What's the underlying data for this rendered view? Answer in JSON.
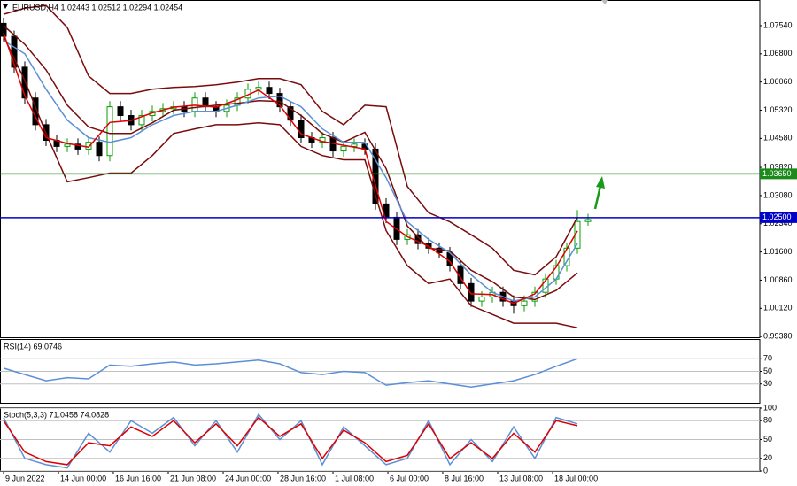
{
  "chart_data": [
    {
      "type": "candlestick",
      "title": "EURUSD,H4 1.02443 1.02512 1.02294 1.02454",
      "x": [
        0,
        1,
        2,
        3,
        4,
        5,
        6,
        7,
        8,
        9,
        10,
        11,
        12,
        13,
        14,
        15,
        16,
        17,
        18,
        19,
        20,
        21,
        22,
        23,
        24,
        25,
        26,
        27,
        28,
        29,
        30,
        31,
        32,
        33,
        34,
        35,
        36,
        37,
        38,
        39,
        40,
        41,
        42,
        43,
        44,
        45,
        46,
        47,
        48,
        49,
        50,
        51,
        52,
        53,
        54,
        55
      ],
      "open": [
        1.076,
        1.0726,
        1.0645,
        1.0564,
        1.0494,
        1.0453,
        1.0437,
        1.0443,
        1.043,
        1.0448,
        1.0413,
        1.0541,
        1.0518,
        1.0494,
        1.0518,
        1.0529,
        1.0536,
        1.0541,
        1.0529,
        1.0564,
        1.0541,
        1.0529,
        1.0545,
        1.0564,
        1.0587,
        1.0592,
        1.0576,
        1.0541,
        1.0506,
        1.046,
        1.0448,
        1.046,
        1.0425,
        1.0437,
        1.0443,
        1.043,
        1.0286,
        1.0251,
        1.0193,
        1.0205,
        1.0182,
        1.017,
        1.0158,
        1.0124,
        1.0077,
        1.0031,
        1.0042,
        1.0054,
        1.0031,
        1.0019,
        1.0031,
        1.0054,
        1.0089,
        1.0124,
        1.017,
        1.024
      ],
      "high": [
        1.0775,
        1.0741,
        1.066,
        1.0579,
        1.0509,
        1.0468,
        1.0458,
        1.0458,
        1.0463,
        1.0463,
        1.0556,
        1.0556,
        1.0533,
        1.0533,
        1.0544,
        1.0551,
        1.0556,
        1.0556,
        1.0579,
        1.0579,
        1.0556,
        1.056,
        1.0579,
        1.0602,
        1.0607,
        1.0607,
        1.0591,
        1.0556,
        1.0521,
        1.0475,
        1.0475,
        1.0475,
        1.0452,
        1.0458,
        1.0458,
        1.0445,
        1.0301,
        1.0266,
        1.022,
        1.022,
        1.0197,
        1.0185,
        1.0173,
        1.0139,
        1.0092,
        1.0057,
        1.0069,
        1.0069,
        1.0046,
        1.0046,
        1.0069,
        1.0104,
        1.0139,
        1.0185,
        1.027,
        1.026
      ],
      "low": [
        1.0711,
        1.063,
        1.0549,
        1.0479,
        1.0438,
        1.0422,
        1.0422,
        1.0415,
        1.0415,
        1.0398,
        1.0398,
        1.0503,
        1.0479,
        1.0479,
        1.0503,
        1.0514,
        1.0521,
        1.0514,
        1.0514,
        1.0526,
        1.0514,
        1.0514,
        1.053,
        1.0549,
        1.0572,
        1.0561,
        1.0526,
        1.0491,
        1.0445,
        1.0433,
        1.0433,
        1.041,
        1.041,
        1.0422,
        1.0415,
        1.0271,
        1.0236,
        1.0178,
        1.0178,
        1.0167,
        1.0155,
        1.0143,
        1.0109,
        1.0062,
        1.0016,
        1.0016,
        1.0027,
        1.0016,
        0.9998,
        1.0004,
        1.0016,
        1.0039,
        1.0074,
        1.0109,
        1.0155,
        1.0229
      ],
      "close": [
        1.0726,
        1.0645,
        1.0564,
        1.0494,
        1.0453,
        1.0437,
        1.0443,
        1.043,
        1.0448,
        1.0413,
        1.0541,
        1.0518,
        1.0494,
        1.0518,
        1.0529,
        1.0536,
        1.0541,
        1.0529,
        1.0564,
        1.0541,
        1.0529,
        1.0545,
        1.0564,
        1.0587,
        1.0592,
        1.0576,
        1.0541,
        1.0506,
        1.046,
        1.0448,
        1.046,
        1.0425,
        1.0437,
        1.0443,
        1.043,
        1.0286,
        1.0251,
        1.0193,
        1.0205,
        1.0182,
        1.017,
        1.0158,
        1.0124,
        1.0077,
        1.0031,
        1.0042,
        1.0054,
        1.0031,
        1.0019,
        1.0031,
        1.0054,
        1.0089,
        1.0124,
        1.017,
        1.024,
        1.0245
      ],
      "up_color": "#00a000",
      "down_color": "#000000",
      "overlays": {
        "x": [
          0,
          2,
          4,
          6,
          8,
          10,
          12,
          14,
          16,
          18,
          20,
          22,
          24,
          26,
          28,
          30,
          32,
          34,
          36,
          38,
          40,
          42,
          44,
          46,
          48,
          50,
          52,
          54
        ],
        "series": [
          {
            "color": "#7a0b0b",
            "values": [
              1.0784,
              1.08,
              1.0807,
              1.0749,
              1.0622,
              1.0576,
              1.0576,
              1.0587,
              1.0592,
              1.0594,
              1.0599,
              1.0606,
              1.0615,
              1.0615,
              1.0599,
              1.0529,
              1.0494,
              1.0545,
              1.0541,
              1.0332,
              1.0263,
              1.0239,
              1.0205,
              1.017,
              1.0112,
              1.01,
              1.0147,
              1.0251
            ]
          },
          {
            "color": "#7a0b0b",
            "values": [
              1.0726,
              1.061,
              1.0471,
              1.0344,
              1.0355,
              1.0367,
              1.0367,
              1.0413,
              1.0471,
              1.0483,
              1.0494,
              1.0494,
              1.0499,
              1.0494,
              1.0437,
              1.0413,
              1.0402,
              1.0402,
              1.0216,
              1.0124,
              1.0077,
              1.0089,
              1.0019,
              0.9996,
              0.9973,
              0.9973,
              0.9973,
              0.9961
            ]
          },
          {
            "color": "#7a0b0b",
            "values": [
              1.0754,
              1.0705,
              1.0638,
              1.0545,
              1.0488,
              1.0471,
              1.0471,
              1.0499,
              1.0532,
              1.0539,
              1.0545,
              1.055,
              1.0557,
              1.0555,
              1.0518,
              1.0471,
              1.0448,
              1.0474,
              1.0379,
              1.0228,
              1.017,
              1.0163,
              1.0112,
              1.0082,
              1.0042,
              1.0035,
              1.0059,
              1.0105
            ]
          },
          {
            "color": "#5b8fd6",
            "values": [
              1.0715,
              1.068,
              1.0587,
              1.0506,
              1.046,
              1.0448,
              1.046,
              1.0494,
              1.0518,
              1.0529,
              1.0529,
              1.0545,
              1.0564,
              1.0569,
              1.0541,
              1.0483,
              1.0448,
              1.0448,
              1.0355,
              1.0239,
              1.0193,
              1.0158,
              1.01,
              1.0054,
              1.0031,
              1.0042,
              1.0089,
              1.0182
            ]
          },
          {
            "color": "#e00000",
            "values": [
              1.0735,
              1.057,
              1.046,
              1.0445,
              1.0435,
              1.05,
              1.0505,
              1.0525,
              1.054,
              1.0545,
              1.054,
              1.056,
              1.0585,
              1.0545,
              1.047,
              1.045,
              1.044,
              1.043,
              1.024,
              1.02,
              1.0175,
              1.0135,
              1.005,
              1.0048,
              1.0025,
              1.005,
              1.012,
              1.0215
            ]
          }
        ]
      },
      "hlines": [
        {
          "value": 1.0365,
          "label": "1.03650",
          "color": "#1a8a1a"
        },
        {
          "value": 1.025,
          "label": "1.02500",
          "color": "#0000c8"
        }
      ],
      "xlim": [
        -0.3333,
        71.1667
      ],
      "ylim": [
        0.9936,
        1.0819
      ],
      "yticks": [
        {
          "value": 1.0754,
          "label": "1.07540"
        },
        {
          "value": 1.068,
          "label": "1.06800"
        },
        {
          "value": 1.0606,
          "label": "1.06060"
        },
        {
          "value": 1.0532,
          "label": "1.05320"
        },
        {
          "value": 1.0458,
          "label": "1.04580"
        },
        {
          "value": 1.0382,
          "label": "1.03820"
        },
        {
          "value": 1.0308,
          "label": "1.03080"
        },
        {
          "value": 1.0234,
          "label": "1.02340"
        },
        {
          "value": 1.016,
          "label": "1.01600"
        },
        {
          "value": 1.0086,
          "label": "1.00860"
        },
        {
          "value": 1.0012,
          "label": "1.00120"
        },
        {
          "value": 0.9938,
          "label": "0.99380"
        }
      ],
      "xticks": [
        {
          "value": 0,
          "label": "9 Jun 2022"
        },
        {
          "value": 5.17,
          "label": "14 Jun 00:00"
        },
        {
          "value": 10.33,
          "label": "16 Jun 16:00"
        },
        {
          "value": 15.5,
          "label": "21 Jun 08:00"
        },
        {
          "value": 20.67,
          "label": "24 Jun 00:00"
        },
        {
          "value": 25.83,
          "label": "28 Jun 16:00"
        },
        {
          "value": 31,
          "label": "1 Jul 08:00"
        },
        {
          "value": 36.17,
          "label": "6 Jul 00:00"
        },
        {
          "value": 41.33,
          "label": "8 Jul 16:00"
        },
        {
          "value": 46.5,
          "label": "13 Jul 08:00"
        },
        {
          "value": 51.67,
          "label": "18 Jul 00:00"
        }
      ]
    },
    {
      "type": "line",
      "title": "RSI(14) 69.0746",
      "x": [
        0,
        2,
        4,
        6,
        8,
        10,
        12,
        14,
        16,
        18,
        20,
        22,
        24,
        26,
        28,
        30,
        32,
        34,
        36,
        38,
        40,
        42,
        44,
        46,
        48,
        50,
        52,
        54
      ],
      "series": [
        {
          "color": "#5b8fd6",
          "values": [
            55,
            45,
            35,
            40,
            38,
            60,
            58,
            62,
            65,
            60,
            62,
            65,
            68,
            62,
            48,
            45,
            50,
            48,
            28,
            32,
            35,
            30,
            25,
            30,
            35,
            45,
            58,
            70
          ]
        }
      ],
      "xlim": [
        -0.3333,
        71.1667
      ],
      "ylim": [
        0,
        100
      ],
      "yticks": [
        30,
        50,
        70
      ],
      "grid": true
    },
    {
      "type": "line",
      "title": "Stoch(5,3,3) 71.0458 74.0828",
      "x": [
        0,
        2,
        4,
        6,
        8,
        10,
        12,
        14,
        16,
        18,
        20,
        22,
        24,
        26,
        28,
        30,
        32,
        34,
        36,
        38,
        40,
        42,
        44,
        46,
        48,
        50,
        52,
        54
      ],
      "series": [
        {
          "color": "#5b8fd6",
          "values": [
            85,
            20,
            10,
            5,
            60,
            30,
            80,
            60,
            85,
            40,
            80,
            30,
            90,
            50,
            80,
            10,
            70,
            40,
            10,
            20,
            80,
            10,
            50,
            15,
            70,
            20,
            85,
            75
          ]
        },
        {
          "color": "#dd0000",
          "values": [
            80,
            30,
            15,
            10,
            45,
            40,
            70,
            55,
            80,
            45,
            75,
            40,
            85,
            55,
            75,
            20,
            65,
            45,
            15,
            25,
            75,
            20,
            45,
            20,
            60,
            30,
            80,
            72
          ]
        }
      ],
      "xlim": [
        -0.3333,
        71.1667
      ],
      "ylim": [
        0,
        100
      ],
      "yticks": [
        0,
        20,
        50,
        80,
        100
      ],
      "grid": true
    }
  ]
}
